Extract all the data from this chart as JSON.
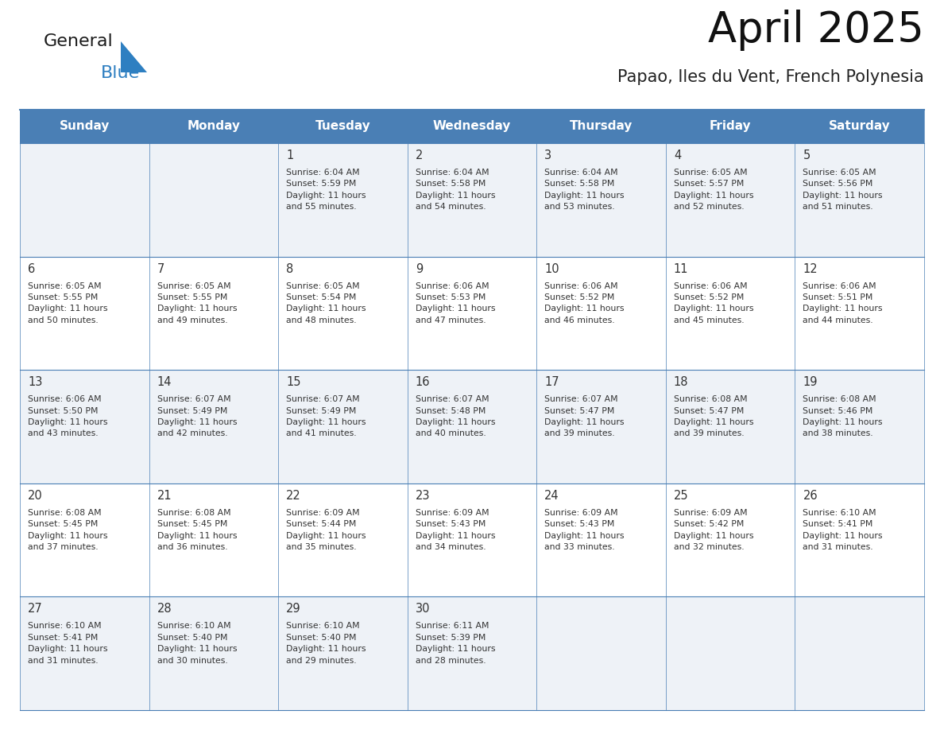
{
  "title": "April 2025",
  "subtitle": "Papao, Iles du Vent, French Polynesia",
  "days_of_week": [
    "Sunday",
    "Monday",
    "Tuesday",
    "Wednesday",
    "Thursday",
    "Friday",
    "Saturday"
  ],
  "header_bg": "#4a7fb5",
  "header_text": "#ffffff",
  "row_bg_odd": "#eef2f7",
  "row_bg_even": "#ffffff",
  "text_color": "#333333",
  "line_color": "#4a7fb5",
  "logo_color1": "#1a1a1a",
  "logo_color2": "#2e7fc1",
  "calendar": [
    [
      {
        "day": "",
        "text": ""
      },
      {
        "day": "",
        "text": ""
      },
      {
        "day": "1",
        "text": "Sunrise: 6:04 AM\nSunset: 5:59 PM\nDaylight: 11 hours\nand 55 minutes."
      },
      {
        "day": "2",
        "text": "Sunrise: 6:04 AM\nSunset: 5:58 PM\nDaylight: 11 hours\nand 54 minutes."
      },
      {
        "day": "3",
        "text": "Sunrise: 6:04 AM\nSunset: 5:58 PM\nDaylight: 11 hours\nand 53 minutes."
      },
      {
        "day": "4",
        "text": "Sunrise: 6:05 AM\nSunset: 5:57 PM\nDaylight: 11 hours\nand 52 minutes."
      },
      {
        "day": "5",
        "text": "Sunrise: 6:05 AM\nSunset: 5:56 PM\nDaylight: 11 hours\nand 51 minutes."
      }
    ],
    [
      {
        "day": "6",
        "text": "Sunrise: 6:05 AM\nSunset: 5:55 PM\nDaylight: 11 hours\nand 50 minutes."
      },
      {
        "day": "7",
        "text": "Sunrise: 6:05 AM\nSunset: 5:55 PM\nDaylight: 11 hours\nand 49 minutes."
      },
      {
        "day": "8",
        "text": "Sunrise: 6:05 AM\nSunset: 5:54 PM\nDaylight: 11 hours\nand 48 minutes."
      },
      {
        "day": "9",
        "text": "Sunrise: 6:06 AM\nSunset: 5:53 PM\nDaylight: 11 hours\nand 47 minutes."
      },
      {
        "day": "10",
        "text": "Sunrise: 6:06 AM\nSunset: 5:52 PM\nDaylight: 11 hours\nand 46 minutes."
      },
      {
        "day": "11",
        "text": "Sunrise: 6:06 AM\nSunset: 5:52 PM\nDaylight: 11 hours\nand 45 minutes."
      },
      {
        "day": "12",
        "text": "Sunrise: 6:06 AM\nSunset: 5:51 PM\nDaylight: 11 hours\nand 44 minutes."
      }
    ],
    [
      {
        "day": "13",
        "text": "Sunrise: 6:06 AM\nSunset: 5:50 PM\nDaylight: 11 hours\nand 43 minutes."
      },
      {
        "day": "14",
        "text": "Sunrise: 6:07 AM\nSunset: 5:49 PM\nDaylight: 11 hours\nand 42 minutes."
      },
      {
        "day": "15",
        "text": "Sunrise: 6:07 AM\nSunset: 5:49 PM\nDaylight: 11 hours\nand 41 minutes."
      },
      {
        "day": "16",
        "text": "Sunrise: 6:07 AM\nSunset: 5:48 PM\nDaylight: 11 hours\nand 40 minutes."
      },
      {
        "day": "17",
        "text": "Sunrise: 6:07 AM\nSunset: 5:47 PM\nDaylight: 11 hours\nand 39 minutes."
      },
      {
        "day": "18",
        "text": "Sunrise: 6:08 AM\nSunset: 5:47 PM\nDaylight: 11 hours\nand 39 minutes."
      },
      {
        "day": "19",
        "text": "Sunrise: 6:08 AM\nSunset: 5:46 PM\nDaylight: 11 hours\nand 38 minutes."
      }
    ],
    [
      {
        "day": "20",
        "text": "Sunrise: 6:08 AM\nSunset: 5:45 PM\nDaylight: 11 hours\nand 37 minutes."
      },
      {
        "day": "21",
        "text": "Sunrise: 6:08 AM\nSunset: 5:45 PM\nDaylight: 11 hours\nand 36 minutes."
      },
      {
        "day": "22",
        "text": "Sunrise: 6:09 AM\nSunset: 5:44 PM\nDaylight: 11 hours\nand 35 minutes."
      },
      {
        "day": "23",
        "text": "Sunrise: 6:09 AM\nSunset: 5:43 PM\nDaylight: 11 hours\nand 34 minutes."
      },
      {
        "day": "24",
        "text": "Sunrise: 6:09 AM\nSunset: 5:43 PM\nDaylight: 11 hours\nand 33 minutes."
      },
      {
        "day": "25",
        "text": "Sunrise: 6:09 AM\nSunset: 5:42 PM\nDaylight: 11 hours\nand 32 minutes."
      },
      {
        "day": "26",
        "text": "Sunrise: 6:10 AM\nSunset: 5:41 PM\nDaylight: 11 hours\nand 31 minutes."
      }
    ],
    [
      {
        "day": "27",
        "text": "Sunrise: 6:10 AM\nSunset: 5:41 PM\nDaylight: 11 hours\nand 31 minutes."
      },
      {
        "day": "28",
        "text": "Sunrise: 6:10 AM\nSunset: 5:40 PM\nDaylight: 11 hours\nand 30 minutes."
      },
      {
        "day": "29",
        "text": "Sunrise: 6:10 AM\nSunset: 5:40 PM\nDaylight: 11 hours\nand 29 minutes."
      },
      {
        "day": "30",
        "text": "Sunrise: 6:11 AM\nSunset: 5:39 PM\nDaylight: 11 hours\nand 28 minutes."
      },
      {
        "day": "",
        "text": ""
      },
      {
        "day": "",
        "text": ""
      },
      {
        "day": "",
        "text": ""
      }
    ]
  ]
}
